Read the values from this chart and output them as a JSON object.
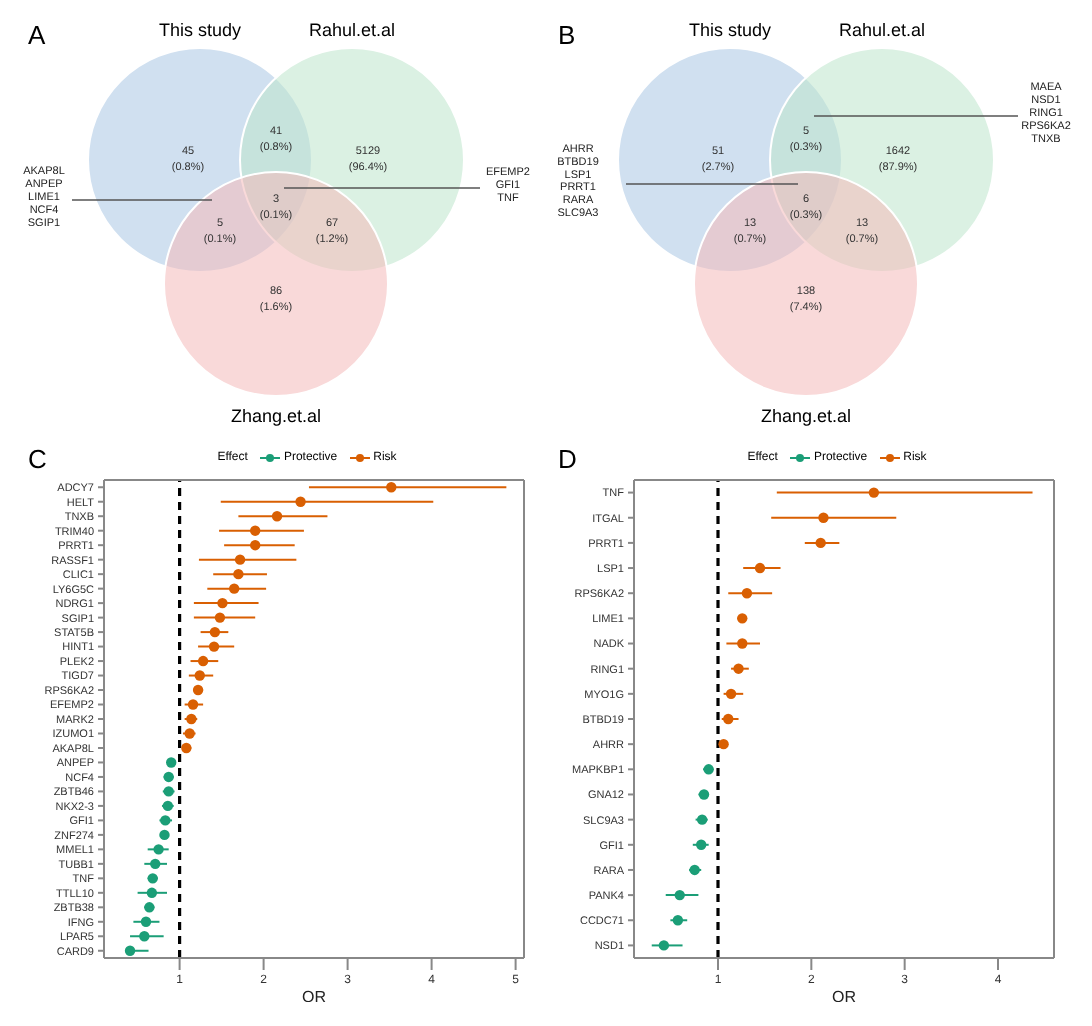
{
  "chart_data": [
    {
      "type": "other",
      "title": "A",
      "annotations": [
        "This study",
        "Rahul.et.al",
        "Zhang.et.al",
        "45\n(0.8%)",
        "41\n(0.8%)",
        "5129\n(96.4%)",
        "5\n(0.1%)",
        "3\n(0.1%)",
        "67\n(1.2%)",
        "86\n(1.6%)",
        "AKAP8L\nANPEP\nLIME1\nNCF4\nSGIP1",
        "EFEMP2\nGFI1\nTNF"
      ]
    },
    {
      "type": "other",
      "title": "B",
      "annotations": [
        "This study",
        "Rahul.et.al",
        "Zhang.et.al",
        "51\n(2.7%)",
        "5\n(0.3%)",
        "1642\n(87.9%)",
        "13\n(0.7%)",
        "6\n(0.3%)",
        "13\n(0.7%)",
        "138\n(7.4%)",
        "AHRR\nBTBD19\nLSP1\nPRRT1\nRARA\nSLC9A3",
        "MAEA\nNSD1\nRING1\nRPS6KA2\nTNXB"
      ]
    },
    {
      "type": "scatter",
      "title": "C",
      "orientation": "horizontal",
      "xlabel": "OR",
      "legend_title": "Effect",
      "legend": "top",
      "marker": "circle",
      "grid": false,
      "xlim": [
        0.1,
        5.1
      ],
      "xticks": [
        1,
        2,
        3,
        4,
        5
      ],
      "ref_lines": [
        {
          "axis": "x",
          "value": 1,
          "color": "#000000",
          "line_style": "dashed"
        }
      ],
      "categories": [
        "ADCY7",
        "HELT",
        "TNXB",
        "TRIM40",
        "PRRT1",
        "RASSF1",
        "CLIC1",
        "LY6G5C",
        "NDRG1",
        "SGIP1",
        "STAT5B",
        "HINT1",
        "PLEK2",
        "TIGD7",
        "RPS6KA2",
        "EFEMP2",
        "MARK2",
        "IZUMO1",
        "AKAP8L",
        "ANPEP",
        "NCF4",
        "ZBTB46",
        "NKX2-3",
        "GFI1",
        "ZNF274",
        "MMEL1",
        "TUBB1",
        "TNF",
        "TTLL10",
        "ZBTB38",
        "IFNG",
        "LPAR5",
        "CARD9"
      ],
      "series": [
        {
          "name": "Protective",
          "color": "#1b9e77",
          "values": [
            null,
            null,
            null,
            null,
            null,
            null,
            null,
            null,
            null,
            null,
            null,
            null,
            null,
            null,
            null,
            null,
            null,
            null,
            null,
            0.9,
            0.87,
            0.87,
            0.86,
            0.83,
            0.82,
            0.75,
            0.71,
            0.68,
            0.67,
            0.64,
            0.6,
            0.58,
            0.41
          ],
          "errors": [
            null,
            null,
            null,
            null,
            null,
            null,
            null,
            null,
            null,
            null,
            null,
            null,
            null,
            null,
            null,
            null,
            null,
            null,
            null,
            [
              0.85,
              0.95
            ],
            [
              0.81,
              0.93
            ],
            [
              0.8,
              0.94
            ],
            [
              0.79,
              0.93
            ],
            [
              0.76,
              0.91
            ],
            [
              0.77,
              0.87
            ],
            [
              0.62,
              0.87
            ],
            [
              0.58,
              0.85
            ],
            [
              0.62,
              0.74
            ],
            [
              0.5,
              0.85
            ],
            [
              0.58,
              0.7
            ],
            [
              0.45,
              0.76
            ],
            [
              0.41,
              0.81
            ],
            [
              0.35,
              0.63
            ]
          ]
        },
        {
          "name": "Risk",
          "color": "#d95f02",
          "values": [
            3.52,
            2.44,
            2.16,
            1.9,
            1.9,
            1.72,
            1.7,
            1.65,
            1.51,
            1.48,
            1.42,
            1.41,
            1.28,
            1.24,
            1.22,
            1.16,
            1.14,
            1.12,
            1.08,
            null,
            null,
            null,
            null,
            null,
            null,
            null,
            null,
            null,
            null,
            null,
            null,
            null,
            null
          ],
          "errors": [
            [
              2.54,
              4.89
            ],
            [
              1.49,
              4.02
            ],
            [
              1.7,
              2.76
            ],
            [
              1.47,
              2.48
            ],
            [
              1.53,
              2.37
            ],
            [
              1.23,
              2.39
            ],
            [
              1.4,
              2.04
            ],
            [
              1.33,
              2.03
            ],
            [
              1.17,
              1.94
            ],
            [
              1.17,
              1.9
            ],
            [
              1.25,
              1.58
            ],
            [
              1.22,
              1.65
            ],
            [
              1.13,
              1.46
            ],
            [
              1.11,
              1.4
            ],
            [
              1.17,
              1.28
            ],
            [
              1.06,
              1.28
            ],
            [
              1.06,
              1.21
            ],
            [
              1.04,
              1.19
            ],
            [
              1.03,
              1.14
            ],
            null,
            null,
            null,
            null,
            null,
            null,
            null,
            null,
            null,
            null,
            null,
            null,
            null,
            null
          ]
        }
      ]
    },
    {
      "type": "scatter",
      "title": "D",
      "orientation": "horizontal",
      "xlabel": "OR",
      "legend_title": "Effect",
      "legend": "top",
      "marker": "circle",
      "grid": false,
      "xlim": [
        0.1,
        4.6
      ],
      "xticks": [
        1,
        2,
        3,
        4
      ],
      "ref_lines": [
        {
          "axis": "x",
          "value": 1,
          "color": "#000000",
          "line_style": "dashed"
        }
      ],
      "categories": [
        "TNF",
        "ITGAL",
        "PRRT1",
        "LSP1",
        "RPS6KA2",
        "LIME1",
        "NADK",
        "RING1",
        "MYO1G",
        "BTBD19",
        "AHRR",
        "MAPKBP1",
        "GNA12",
        "SLC9A3",
        "GFI1",
        "RARA",
        "PANK4",
        "CCDC71",
        "NSD1"
      ],
      "series": [
        {
          "name": "Protective",
          "color": "#1b9e77",
          "values": [
            null,
            null,
            null,
            null,
            null,
            null,
            null,
            null,
            null,
            null,
            null,
            0.9,
            0.85,
            0.83,
            0.82,
            0.75,
            0.59,
            0.57,
            0.42
          ],
          "errors": [
            null,
            null,
            null,
            null,
            null,
            null,
            null,
            null,
            null,
            null,
            null,
            [
              0.84,
              0.95
            ],
            [
              0.79,
              0.9
            ],
            [
              0.76,
              0.89
            ],
            [
              0.73,
              0.9
            ],
            [
              0.69,
              0.82
            ],
            [
              0.44,
              0.79
            ],
            [
              0.49,
              0.67
            ],
            [
              0.29,
              0.62
            ]
          ]
        },
        {
          "name": "Risk",
          "color": "#d95f02",
          "values": [
            2.67,
            2.13,
            2.1,
            1.45,
            1.31,
            1.26,
            1.26,
            1.22,
            1.14,
            1.11,
            1.06,
            null,
            null,
            null,
            null,
            null,
            null,
            null,
            null
          ],
          "errors": [
            [
              1.63,
              4.37
            ],
            [
              1.57,
              2.91
            ],
            [
              1.93,
              2.3
            ],
            [
              1.27,
              1.67
            ],
            [
              1.11,
              1.58
            ],
            [
              1.21,
              1.3
            ],
            [
              1.09,
              1.45
            ],
            [
              1.14,
              1.33
            ],
            [
              1.06,
              1.27
            ],
            [
              1.04,
              1.22
            ],
            [
              1.01,
              1.1
            ],
            null,
            null,
            null,
            null,
            null,
            null,
            null,
            null
          ]
        }
      ]
    }
  ]
}
